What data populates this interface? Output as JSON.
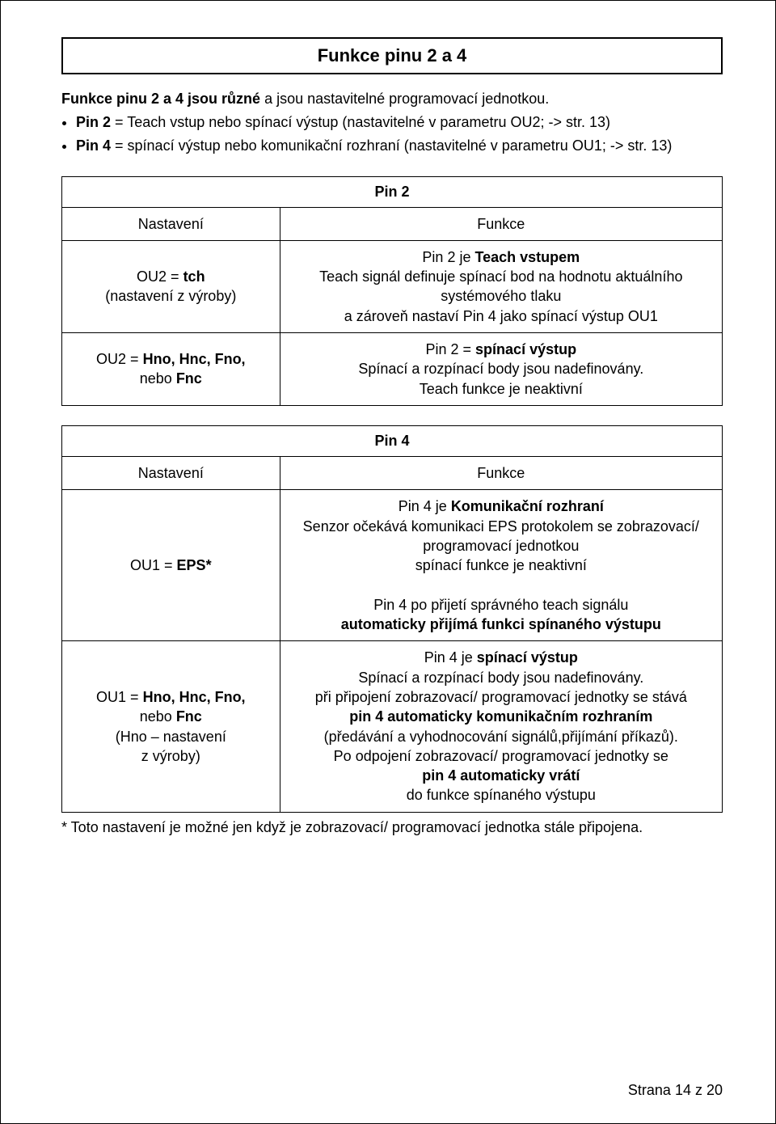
{
  "title": "Funkce pinu 2 a 4",
  "intro_html": "<b>Funkce pinu 2 a 4 jsou různé</b> a jsou nastavitelné programovací jednotkou.",
  "bullet1_html": "<b>Pin 2</b> = Teach vstup nebo spínací výstup (nastavitelné v parametru OU2; -> str. 13)",
  "bullet2_html": "<b>Pin 4</b> = spínací výstup nebo komunikační rozhraní  (nastavitelné v parametru OU1; -> str. 13)",
  "pin2": {
    "title": "Pin 2",
    "col_nastaveni": "Nastavení",
    "col_funkce": "Funkce",
    "row1_left_html": "OU2 = <b>tch</b><br>(nastavení z výroby)",
    "row1_right_html": "Pin 2 je <b>Teach vstupem</b><br>Teach signál definuje spínací bod na hodnotu aktuálního systémového tlaku<br>a zároveň nastaví Pin 4 jako spínací výstup OU1",
    "row2_left_html": "OU2 =  <b>Hno, Hnc, Fno,</b><br>nebo <b>Fnc</b>",
    "row2_right_html": "Pin 2 = <b>spínací výstup</b><br>Spínací a rozpínací body jsou nadefinovány.<br>Teach funkce je neaktivní"
  },
  "pin4": {
    "title": "Pin 4",
    "col_nastaveni": "Nastavení",
    "col_funkce": "Funkce",
    "row1_left_html": "OU1 = <b>EPS*</b>",
    "row1_right_html": "Pin 4 je <b>Komunikační rozhraní</b><br>Senzor očekává komunikaci EPS protokolem se zobrazovací/ programovací jednotkou<br>spínací funkce je neaktivní<br><br>Pin 4 po přijetí správného teach signálu<br><b>automaticky přijímá funkci spínaného výstupu</b>",
    "row2_left_html": "OU1 = <b>Hno, Hnc, Fno,</b><br>nebo <b>Fnc</b><br>(Hno – nastavení<br>z výroby)",
    "row2_right_html": "Pin 4 je <b>spínací výstup</b><br>Spínací a rozpínací body jsou nadefinovány.<br>při připojení zobrazovací/ programovací jednotky se stává<br><b>pin 4 automaticky komunikačním rozhraním</b><br>(předávání a vyhodnocování signálů,přijímání příkazů).<br>Po odpojení zobrazovací/ programovací jednotky se<br><b>pin 4 automaticky vrátí</b><br>do funkce spínaného výstupu"
  },
  "footnote": "* Toto nastavení je možné jen když je zobrazovací/ programovací jednotka stále připojena.",
  "footer": "Strana 14 z 20"
}
